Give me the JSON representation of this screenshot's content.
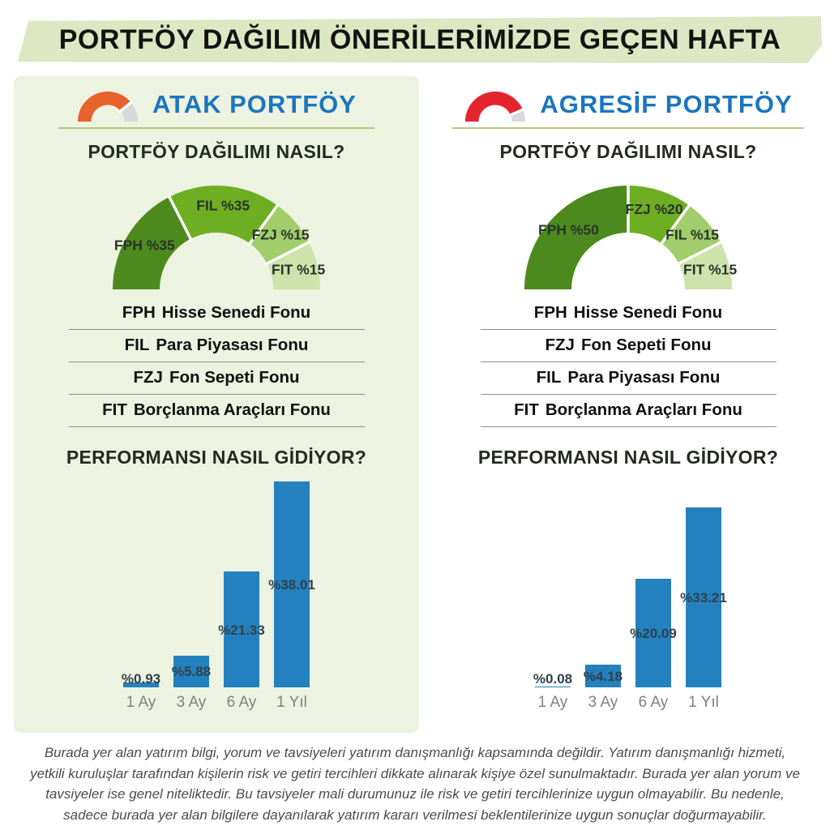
{
  "banner": {
    "title": "PORTFÖY DAĞILIM ÖNERİLERİMİZDE GEÇEN HAFTA"
  },
  "colors": {
    "banner_bg": "#DDE8C3",
    "panel_bg": "#EDF3E1",
    "title_blue": "#1B76BE",
    "divider_olive": "#B9C77C",
    "bar_blue": "#2481BF",
    "bar_label": "#31424B",
    "axis_label_gray": "#7E837E",
    "heading_dark": "#242B20",
    "gauge_orange": "#E8622B",
    "gauge_red": "#E4252F",
    "gauge_gray": "#D9D9D9",
    "donut_greens": [
      "#4C8A1D",
      "#6EAE22",
      "#A1CD6A",
      "#CEE2AC"
    ],
    "disclaimer_gray": "#4C4C4C"
  },
  "panels": [
    {
      "id": "atak",
      "title": "ATAK PORTFÖY",
      "gauge_icon": {
        "segments": [
          {
            "value": 78,
            "color": "#E8622B"
          },
          {
            "value": 22,
            "color": "#D9D9D9"
          }
        ]
      },
      "distribution_heading": "PORTFÖY DAĞILIMI NASIL?",
      "donut": {
        "segments": [
          {
            "code": "FPH",
            "label": "FPH %35",
            "value": 35,
            "color": "#4C8A1D"
          },
          {
            "code": "FIL",
            "label": "FIL %35",
            "value": 35,
            "color": "#6EAE22"
          },
          {
            "code": "FZJ",
            "label": "FZJ %15",
            "value": 15,
            "color": "#A1CD6A"
          },
          {
            "code": "FIT",
            "label": "FIT %15",
            "value": 15,
            "color": "#CEE2AC"
          }
        ]
      },
      "legend": [
        {
          "code": "FPH",
          "name": "Hisse Senedi Fonu"
        },
        {
          "code": "FIL",
          "name": "Para Piyasası Fonu"
        },
        {
          "code": "FZJ",
          "name": "Fon Sepeti Fonu"
        },
        {
          "code": "FIT",
          "name": "Borçlanma Araçları Fonu"
        }
      ],
      "performance_heading": "PERFORMANSI NASIL GİDİYOR?",
      "bar_chart": {
        "categories": [
          "1 Ay",
          "3 Ay",
          "6 Ay",
          "1 Yıl"
        ],
        "values": [
          0.93,
          5.88,
          21.33,
          38.01
        ],
        "labels": [
          "%0.93",
          "%5.88",
          "%21.33",
          "%38.01"
        ]
      }
    },
    {
      "id": "agresif",
      "title": "AGRESİF PORTFÖY",
      "gauge_icon": {
        "segments": [
          {
            "value": 87,
            "color": "#E4252F"
          },
          {
            "value": 13,
            "color": "#D9D9D9"
          }
        ]
      },
      "distribution_heading": "PORTFÖY DAĞILIMI NASIL?",
      "donut": {
        "segments": [
          {
            "code": "FPH",
            "label": "FPH %50",
            "value": 50,
            "color": "#4C8A1D"
          },
          {
            "code": "FZJ",
            "label": "FZJ %20",
            "value": 20,
            "color": "#6EAE22"
          },
          {
            "code": "FIL",
            "label": "FIL %15",
            "value": 15,
            "color": "#A1CD6A"
          },
          {
            "code": "FIT",
            "label": "FIT %15",
            "value": 15,
            "color": "#CEE2AC"
          }
        ]
      },
      "legend": [
        {
          "code": "FPH",
          "name": "Hisse Senedi Fonu"
        },
        {
          "code": "FZJ",
          "name": "Fon Sepeti Fonu"
        },
        {
          "code": "FIL",
          "name": "Para Piyasası Fonu"
        },
        {
          "code": "FIT",
          "name": "Borçlanma Araçları Fonu"
        }
      ],
      "performance_heading": "PERFORMANSI NASIL GİDİYOR?",
      "bar_chart": {
        "categories": [
          "1 Ay",
          "3 Ay",
          "6 Ay",
          "1 Yıl"
        ],
        "values": [
          0.08,
          4.18,
          20.09,
          33.21
        ],
        "labels": [
          "%0.08",
          "%4.18",
          "%20.09",
          "%33.21"
        ]
      }
    }
  ],
  "disclaimer": "Burada yer alan yatırım bilgi, yorum ve tavsiyeleri yatırım danışmanlığı kapsamında değildir. Yatırım danışmanlığı hizmeti, yetkili kuruluşlar tarafından kişilerin risk ve getiri tercihleri dikkate alınarak kişiye özel sunulmaktadır. Burada yer alan yorum ve tavsiyeler ise genel niteliktedir. Bu tavsiyeler mali durumunuz ile risk ve getiri tercihlerinize uygun olmayabilir. Bu nedenle, sadece burada yer alan bilgilere dayanılarak yatırım kararı verilmesi beklentilerinize uygun sonuçlar doğurmayabilir.",
  "chart_data": [
    {
      "type": "pie",
      "subtype": "half-donut",
      "title": "ATAK PORTFÖY — PORTFÖY DAĞILIMI NASIL?",
      "labels": [
        "FPH",
        "FIL",
        "FZJ",
        "FIT"
      ],
      "values": [
        35,
        35,
        15,
        15
      ],
      "data_labels": [
        "FPH %35",
        "FIL %35",
        "FZJ %15",
        "FIT %15"
      ],
      "colors": [
        "#4C8A1D",
        "#6EAE22",
        "#A1CD6A",
        "#CEE2AC"
      ],
      "legend_position": "below"
    },
    {
      "type": "bar",
      "title": "ATAK PORTFÖY — PERFORMANSI NASIL GİDİYOR?",
      "categories": [
        "1 Ay",
        "3 Ay",
        "6 Ay",
        "1 Yıl"
      ],
      "values": [
        0.93,
        5.88,
        21.33,
        38.01
      ],
      "data_labels": [
        "%0.93",
        "%5.88",
        "%21.33",
        "%38.01"
      ],
      "bar_color": "#2481BF",
      "xlabel": "",
      "ylabel": "",
      "ylim": [
        0,
        40
      ],
      "grid": false
    },
    {
      "type": "pie",
      "subtype": "half-donut",
      "title": "AGRESİF PORTFÖY — PORTFÖY DAĞILIMI NASIL?",
      "labels": [
        "FPH",
        "FZJ",
        "FIL",
        "FIT"
      ],
      "values": [
        50,
        20,
        15,
        15
      ],
      "data_labels": [
        "FPH %50",
        "FZJ %20",
        "FIL %15",
        "FIT %15"
      ],
      "colors": [
        "#4C8A1D",
        "#6EAE22",
        "#A1CD6A",
        "#CEE2AC"
      ],
      "legend_position": "below"
    },
    {
      "type": "bar",
      "title": "AGRESİF PORTFÖY — PERFORMANSI NASIL GİDİYOR?",
      "categories": [
        "1 Ay",
        "3 Ay",
        "6 Ay",
        "1 Yıl"
      ],
      "values": [
        0.08,
        4.18,
        20.09,
        33.21
      ],
      "data_labels": [
        "%0.08",
        "%4.18",
        "%20.09",
        "%33.21"
      ],
      "bar_color": "#2481BF",
      "xlabel": "",
      "ylabel": "",
      "ylim": [
        0,
        40
      ],
      "grid": false
    }
  ]
}
